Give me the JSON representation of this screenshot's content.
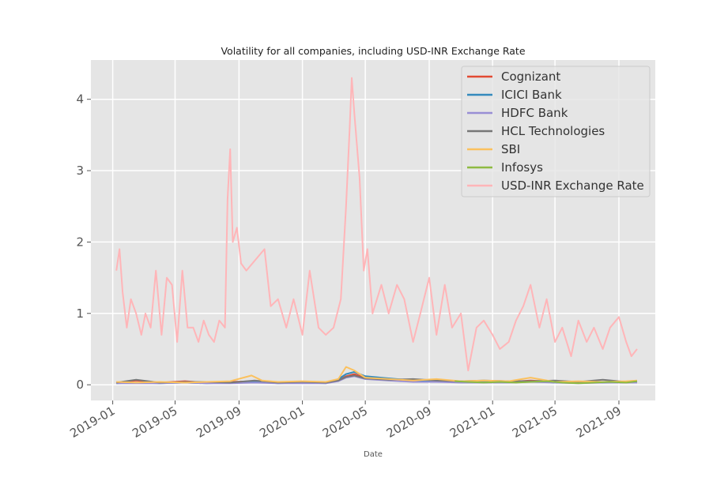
{
  "chart_data": {
    "type": "line",
    "title": "Volatility for all companies, including USD-INR Exchange Rate",
    "xlabel": "Date",
    "ylabel": "",
    "xlim": [
      "2018-11-20",
      "2021-11-10"
    ],
    "ylim": [
      -0.22,
      4.55
    ],
    "x_ticks": [
      "2019-01",
      "2019-05",
      "2019-09",
      "2020-01",
      "2020-05",
      "2020-09",
      "2021-01",
      "2021-05",
      "2021-09"
    ],
    "y_ticks": [
      0,
      1,
      2,
      3,
      4
    ],
    "grid": true,
    "legend_position": "top-right",
    "series": [
      {
        "name": "Cognizant",
        "color": "#e24a33",
        "x": [
          "2019-01-08",
          "2019-02-15",
          "2019-04-01",
          "2019-05-20",
          "2019-07-01",
          "2019-08-15",
          "2019-10-01",
          "2019-11-15",
          "2020-01-01",
          "2020-02-15",
          "2020-03-10",
          "2020-03-25",
          "2020-04-10",
          "2020-05-01",
          "2020-06-15",
          "2020-08-01",
          "2020-09-15",
          "2020-11-01",
          "2020-12-15",
          "2021-02-01",
          "2021-03-15",
          "2021-05-01",
          "2021-06-15",
          "2021-08-01",
          "2021-09-15",
          "2021-10-06"
        ],
        "values": [
          0.03,
          0.06,
          0.03,
          0.05,
          0.03,
          0.04,
          0.05,
          0.03,
          0.04,
          0.03,
          0.06,
          0.12,
          0.15,
          0.1,
          0.08,
          0.05,
          0.06,
          0.04,
          0.05,
          0.04,
          0.06,
          0.04,
          0.03,
          0.04,
          0.03,
          0.04
        ]
      },
      {
        "name": "ICICI Bank",
        "color": "#348abd",
        "x": [
          "2019-01-08",
          "2019-02-15",
          "2019-04-01",
          "2019-05-20",
          "2019-07-01",
          "2019-08-15",
          "2019-10-01",
          "2019-11-15",
          "2020-01-01",
          "2020-02-15",
          "2020-03-10",
          "2020-03-25",
          "2020-04-10",
          "2020-05-01",
          "2020-06-15",
          "2020-08-01",
          "2020-09-15",
          "2020-11-01",
          "2020-12-15",
          "2021-02-01",
          "2021-03-15",
          "2021-05-01",
          "2021-06-15",
          "2021-08-01",
          "2021-09-15",
          "2021-10-06"
        ],
        "values": [
          0.02,
          0.03,
          0.02,
          0.03,
          0.02,
          0.03,
          0.04,
          0.02,
          0.03,
          0.02,
          0.08,
          0.15,
          0.18,
          0.12,
          0.09,
          0.06,
          0.05,
          0.04,
          0.05,
          0.04,
          0.05,
          0.03,
          0.04,
          0.03,
          0.04,
          0.05
        ]
      },
      {
        "name": "HDFC Bank",
        "color": "#988ed5",
        "x": [
          "2019-01-08",
          "2019-02-15",
          "2019-04-01",
          "2019-05-20",
          "2019-07-01",
          "2019-08-15",
          "2019-10-01",
          "2019-11-15",
          "2020-01-01",
          "2020-02-15",
          "2020-03-10",
          "2020-03-25",
          "2020-04-10",
          "2020-05-01",
          "2020-06-15",
          "2020-08-01",
          "2020-09-15",
          "2020-11-01",
          "2020-12-15",
          "2021-02-01",
          "2021-03-15",
          "2021-05-01",
          "2021-06-15",
          "2021-08-01",
          "2021-09-15",
          "2021-10-06"
        ],
        "values": [
          0.02,
          0.02,
          0.02,
          0.03,
          0.02,
          0.02,
          0.03,
          0.02,
          0.02,
          0.02,
          0.05,
          0.1,
          0.12,
          0.08,
          0.06,
          0.04,
          0.04,
          0.03,
          0.03,
          0.03,
          0.04,
          0.03,
          0.02,
          0.03,
          0.03,
          0.03
        ]
      },
      {
        "name": "HCL Technologies",
        "color": "#777777",
        "x": [
          "2019-01-08",
          "2019-02-15",
          "2019-04-01",
          "2019-05-20",
          "2019-07-01",
          "2019-08-15",
          "2019-10-01",
          "2019-11-15",
          "2020-01-01",
          "2020-02-15",
          "2020-03-10",
          "2020-03-25",
          "2020-04-10",
          "2020-05-01",
          "2020-06-15",
          "2020-08-01",
          "2020-09-15",
          "2020-11-01",
          "2020-12-15",
          "2021-02-01",
          "2021-03-15",
          "2021-05-01",
          "2021-06-15",
          "2021-08-01",
          "2021-09-15",
          "2021-10-06"
        ],
        "values": [
          0.03,
          0.07,
          0.03,
          0.04,
          0.04,
          0.03,
          0.06,
          0.03,
          0.04,
          0.03,
          0.06,
          0.11,
          0.13,
          0.09,
          0.07,
          0.08,
          0.06,
          0.05,
          0.06,
          0.05,
          0.05,
          0.06,
          0.04,
          0.07,
          0.04,
          0.05
        ]
      },
      {
        "name": "SBI",
        "color": "#fbc15e",
        "x": [
          "2019-01-08",
          "2019-02-15",
          "2019-04-01",
          "2019-05-20",
          "2019-07-01",
          "2019-08-15",
          "2019-09-25",
          "2019-10-15",
          "2019-11-15",
          "2020-01-01",
          "2020-02-15",
          "2020-03-10",
          "2020-03-25",
          "2020-04-10",
          "2020-05-01",
          "2020-06-15",
          "2020-08-01",
          "2020-09-15",
          "2020-11-01",
          "2020-12-15",
          "2021-02-01",
          "2021-03-15",
          "2021-05-01",
          "2021-06-15",
          "2021-08-01",
          "2021-09-15",
          "2021-10-06"
        ],
        "values": [
          0.04,
          0.03,
          0.04,
          0.03,
          0.04,
          0.05,
          0.13,
          0.06,
          0.04,
          0.05,
          0.04,
          0.08,
          0.25,
          0.2,
          0.1,
          0.08,
          0.06,
          0.08,
          0.05,
          0.06,
          0.05,
          0.1,
          0.04,
          0.05,
          0.04,
          0.05,
          0.06
        ]
      },
      {
        "name": "Infosys",
        "color": "#8eba42",
        "x": [
          "2020-10-20",
          "2020-11-15",
          "2020-12-15",
          "2021-01-15",
          "2021-02-15",
          "2021-03-15",
          "2021-04-15",
          "2021-05-15",
          "2021-06-15",
          "2021-07-15",
          "2021-08-15",
          "2021-09-15",
          "2021-10-06"
        ],
        "values": [
          0.05,
          0.04,
          0.03,
          0.04,
          0.03,
          0.04,
          0.05,
          0.03,
          0.02,
          0.03,
          0.04,
          0.03,
          0.05
        ]
      },
      {
        "name": "USD-INR Exchange Rate",
        "color": "#ffb5b8",
        "x": [
          "2019-01-08",
          "2019-01-14",
          "2019-01-20",
          "2019-01-28",
          "2019-02-05",
          "2019-02-15",
          "2019-02-25",
          "2019-03-05",
          "2019-03-15",
          "2019-03-25",
          "2019-04-05",
          "2019-04-15",
          "2019-04-25",
          "2019-05-05",
          "2019-05-15",
          "2019-05-25",
          "2019-06-05",
          "2019-06-15",
          "2019-06-25",
          "2019-07-05",
          "2019-07-15",
          "2019-07-25",
          "2019-08-05",
          "2019-08-10",
          "2019-08-15",
          "2019-08-20",
          "2019-08-28",
          "2019-09-05",
          "2019-09-15",
          "2019-10-20",
          "2019-11-01",
          "2019-11-15",
          "2019-12-01",
          "2019-12-15",
          "2020-01-01",
          "2020-01-15",
          "2020-02-01",
          "2020-02-15",
          "2020-03-01",
          "2020-03-15",
          "2020-03-25",
          "2020-04-01",
          "2020-04-05",
          "2020-04-10",
          "2020-04-20",
          "2020-04-28",
          "2020-05-05",
          "2020-05-15",
          "2020-06-01",
          "2020-06-15",
          "2020-07-01",
          "2020-07-15",
          "2020-08-01",
          "2020-08-15",
          "2020-09-01",
          "2020-09-15",
          "2020-10-01",
          "2020-10-15",
          "2020-11-01",
          "2020-11-15",
          "2020-12-01",
          "2020-12-15",
          "2021-01-01",
          "2021-01-15",
          "2021-02-01",
          "2021-02-15",
          "2021-03-01",
          "2021-03-15",
          "2021-04-01",
          "2021-04-15",
          "2021-05-01",
          "2021-05-15",
          "2021-06-01",
          "2021-06-15",
          "2021-07-01",
          "2021-07-15",
          "2021-08-01",
          "2021-08-15",
          "2021-09-01",
          "2021-09-15",
          "2021-09-25",
          "2021-10-06"
        ],
        "values": [
          1.6,
          1.9,
          1.3,
          0.8,
          1.2,
          1.0,
          0.7,
          1.0,
          0.8,
          1.6,
          0.7,
          1.5,
          1.4,
          0.6,
          1.6,
          0.8,
          0.8,
          0.6,
          0.9,
          0.7,
          0.6,
          0.9,
          0.8,
          2.6,
          3.3,
          2.0,
          2.2,
          1.7,
          1.6,
          1.9,
          1.1,
          1.2,
          0.8,
          1.2,
          0.7,
          1.6,
          0.8,
          0.7,
          0.8,
          1.2,
          2.5,
          3.6,
          4.3,
          3.8,
          2.9,
          1.6,
          1.9,
          1.0,
          1.4,
          1.0,
          1.4,
          1.2,
          0.6,
          1.0,
          1.5,
          0.7,
          1.4,
          0.8,
          1.0,
          0.2,
          0.8,
          0.9,
          0.7,
          0.5,
          0.6,
          0.9,
          1.1,
          1.4,
          0.8,
          1.2,
          0.6,
          0.8,
          0.4,
          0.9,
          0.6,
          0.8,
          0.5,
          0.8,
          0.95,
          0.6,
          0.4,
          0.5
        ]
      }
    ]
  }
}
